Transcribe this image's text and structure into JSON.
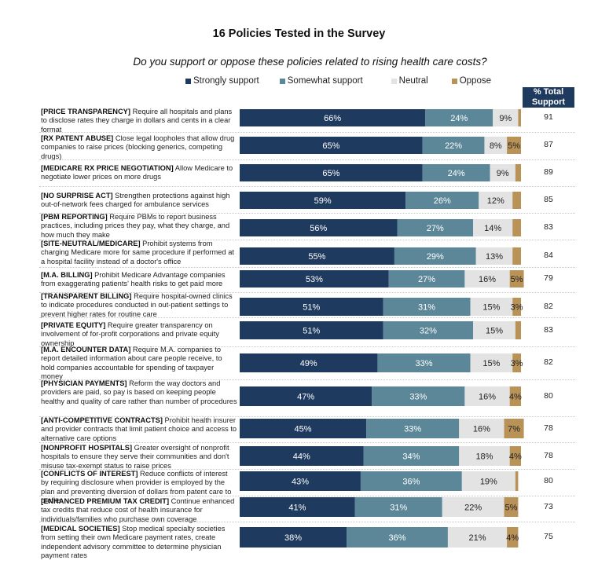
{
  "title": "16 Policies Tested in the Survey",
  "subtitle": "Do you support or oppose these policies related to rising health care costs?",
  "legend": [
    {
      "name": "Strongly support",
      "color": "#1f3a5f"
    },
    {
      "name": "Somewhat support",
      "color": "#5b8799"
    },
    {
      "name": "Neutral",
      "color": "#e3e3e3"
    },
    {
      "name": "Oppose",
      "color": "#b89257"
    }
  ],
  "total_header": "% Total Support",
  "chart_data": {
    "type": "bar",
    "orientation": "horizontal",
    "stacked": true,
    "title": "16 Policies Tested in the Survey",
    "subtitle": "Do you support or oppose these policies related to rising health care costs?",
    "xlim": [
      0,
      100
    ],
    "units": "%",
    "legend_position": "top",
    "series_names": [
      "Strongly support",
      "Somewhat support",
      "Neutral",
      "Oppose"
    ],
    "rows": [
      {
        "tag": "[PRICE TRANSPARENCY]",
        "text": "Require all hospitals and plans to disclose rates they charge in dollars and cents in a clear format",
        "values": [
          66,
          24,
          9,
          1
        ],
        "labels": [
          "66%",
          "24%",
          "9%",
          ""
        ],
        "total_support": "91"
      },
      {
        "tag": "[RX PATENT ABUSE]",
        "text": "Close legal loopholes that allow drug companies to raise prices (blocking generics, competing drugs)",
        "values": [
          65,
          22,
          8,
          5
        ],
        "labels": [
          "65%",
          "22%",
          "8%",
          "5%"
        ],
        "total_support": "87"
      },
      {
        "tag": "[MEDICARE RX PRICE NEGOTIATION]",
        "text": "Allow Medicare to negotiate lower prices on more drugs",
        "values": [
          65,
          24,
          9,
          2
        ],
        "labels": [
          "65%",
          "24%",
          "9%",
          ""
        ],
        "total_support": "89"
      },
      {
        "tag": "[NO SURPRISE ACT]",
        "text": "Strengthen protections against high out-of-network fees charged for ambulance services",
        "values": [
          59,
          26,
          12,
          3
        ],
        "labels": [
          "59%",
          "26%",
          "12%",
          ""
        ],
        "total_support": "85"
      },
      {
        "tag": "[PBM REPORTING]",
        "text": "Require PBMs to report business practices, including prices they pay, what they charge, and how much they make",
        "values": [
          56,
          27,
          14,
          3
        ],
        "labels": [
          "56%",
          "27%",
          "14%",
          ""
        ],
        "total_support": "83"
      },
      {
        "tag": "[SITE-NEUTRAL/MEDICARE]",
        "text": "Prohibit systems from charging Medicare more for same procedure if performed at a hospital facility instead of a doctor's office",
        "values": [
          55,
          29,
          13,
          3
        ],
        "labels": [
          "55%",
          "29%",
          "13%",
          ""
        ],
        "total_support": "84"
      },
      {
        "tag": "[M.A. BILLING]",
        "text": "Prohibit Medicare Advantage companies from exaggerating patients' health risks to get paid more",
        "values": [
          53,
          27,
          16,
          5
        ],
        "labels": [
          "53%",
          "27%",
          "16%",
          "5%"
        ],
        "total_support": "79"
      },
      {
        "tag": "[TRANSPARENT BILLING]",
        "text": "Require hospital-owned clinics to indicate procedures conducted in out-patient settings to prevent higher rates for routine care",
        "values": [
          51,
          31,
          15,
          3
        ],
        "labels": [
          "51%",
          "31%",
          "15%",
          "3%"
        ],
        "total_support": "82"
      },
      {
        "tag": "[PRIVATE EQUITY]",
        "text": "Require greater transparency on involvement of for-profit corporations and private equity ownership",
        "values": [
          51,
          32,
          15,
          2
        ],
        "labels": [
          "51%",
          "32%",
          "15%",
          ""
        ],
        "total_support": "83"
      },
      {
        "tag": "[M.A. ENCOUNTER DATA]",
        "text": "Require M.A. companies to report detailed information about care people receive, to hold companies accountable for spending of taxpayer money",
        "values": [
          49,
          33,
          15,
          3
        ],
        "labels": [
          "49%",
          "33%",
          "15%",
          "3%"
        ],
        "total_support": "82"
      },
      {
        "tag": "[PHYSICIAN PAYMENTS]",
        "text": "Reform the way doctors and providers are paid, so pay is based on keeping people healthy and quality of care rather than number of procedures",
        "values": [
          47,
          33,
          16,
          4
        ],
        "labels": [
          "47%",
          "33%",
          "16%",
          "4%"
        ],
        "total_support": "80"
      },
      {
        "tag": "[ANTI-COMPETITIVE CONTRACTS]",
        "text": "Prohibit health insurer and provider contracts that limit patient choice and access to alternative care options",
        "values": [
          45,
          33,
          16,
          7
        ],
        "labels": [
          "45%",
          "33%",
          "16%",
          "7%"
        ],
        "total_support": "78"
      },
      {
        "tag": "[NONPROFIT HOSPITALS]",
        "text": "Greater oversight of nonprofit hospitals to ensure they serve their communities and don't misuse tax-exempt status to raise prices",
        "values": [
          44,
          34,
          18,
          4
        ],
        "labels": [
          "44%",
          "34%",
          "18%",
          "4%"
        ],
        "total_support": "78"
      },
      {
        "tag": "[CONFLICTS OF INTEREST]",
        "text": "Reduce conflicts of interest by requiring disclosure when provider is employed by the plan and preventing diversion of dollars from patent care to profits",
        "values": [
          43,
          36,
          19,
          1
        ],
        "labels": [
          "43%",
          "36%",
          "19%",
          ""
        ],
        "total_support": "80"
      },
      {
        "tag": "[ENHANCED PREMIUM TAX CREDIT]",
        "text": "Continue enhanced tax credits that reduce cost of health insurance for individuals/families who purchase own coverage",
        "values": [
          41,
          31,
          22,
          5
        ],
        "labels": [
          "41%",
          "31%",
          "22%",
          "5%"
        ],
        "total_support": "73"
      },
      {
        "tag": "[MEDICAL SOCIETIES]",
        "text": "Stop medical specialty societies from setting their own Medicare payment rates, create independent advisory committee to determine physician payment rates",
        "values": [
          38,
          36,
          21,
          4
        ],
        "labels": [
          "38%",
          "36%",
          "21%",
          "4%"
        ],
        "total_support": "75"
      }
    ]
  }
}
